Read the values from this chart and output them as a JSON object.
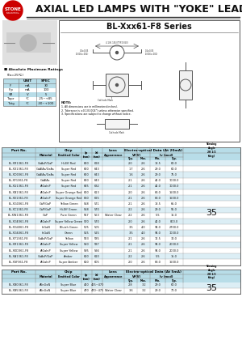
{
  "title_main": "AXIAL LED LAMPS WITH \"YOKE\" LEAD",
  "title_series": "BL-Xxx61-F8 Series",
  "logo_color": "#cc0000",
  "bg_color": "#ffffff",
  "table_header_bg": "#b8dde8",
  "abs_max_title": "Absolute Maximum Ratings",
  "abs_max_subtitle": "(Ta=25℃)",
  "abs_max_headers": [
    "",
    "UNIT",
    "SPEC"
  ],
  "abs_max_rows": [
    [
      "IF",
      "mA",
      "30"
    ],
    [
      "IFp",
      "mA",
      "100"
    ],
    [
      "VR",
      "V",
      "5"
    ],
    [
      "Topr",
      "°C",
      "-25~+85"
    ],
    [
      "Tstg",
      "°C",
      "-30~+100"
    ]
  ],
  "main_rows": [
    [
      "BL-XR1361-F8",
      "GaAsP/GaP",
      "Hi-Eff Red",
      "660",
      "628",
      "2.0",
      "2.6",
      "18.5",
      "60.0"
    ],
    [
      "BL-XX1361-F8",
      "GaAlAs/GaAs",
      "Super Red",
      "660",
      "643",
      "1.7",
      "2.6",
      "29.0",
      "60.0"
    ],
    [
      "BL-XD0361-F8",
      "GaAlAs/GaAs",
      "Super Red",
      "660",
      "643",
      "1.6",
      "2.6",
      "29.0",
      "75.0"
    ],
    [
      "BL-XF1361-F8",
      "GaAlAs",
      "Super Red",
      "660",
      "643",
      "2.1",
      "2.6",
      "42.0",
      "1000.0"
    ],
    [
      "BL-XU1361-F8",
      "AlGaInP",
      "Super Red",
      "645",
      "632",
      "2.1",
      "2.6",
      "42.0",
      "1000.0"
    ],
    [
      "BL-XB1361-F8",
      "AlGaInP",
      "Super Orange Red",
      "620",
      "613",
      "2.0",
      "2.6",
      "63.0",
      "1500.0"
    ],
    [
      "BL-XE1361-F8",
      "AlGaInP",
      "Super Orange Red",
      "630",
      "625",
      "2.1",
      "2.6",
      "63.0",
      "1500.0"
    ],
    [
      "BL-XG0361-F8",
      "GaP/GaP",
      "Yellow Green",
      "568",
      "571",
      "2.1",
      "2.6",
      "18.5",
      "65.0"
    ],
    [
      "BL-XC1361-F8",
      "GaP/GaP",
      "Hi-Eff Green",
      "568",
      "570",
      "2.2",
      "2.6",
      "29.0",
      "55.0"
    ],
    [
      "BL-XW1361-F8",
      "GaP",
      "Pure Green",
      "557",
      "563",
      "2.2",
      "2.6",
      "5.5",
      "15.0"
    ],
    [
      "BL-XGE361-F8",
      "AlGaInP",
      "Super Yellow Green",
      "570",
      "570",
      "2.0",
      "2.6",
      "42.0",
      "800.0"
    ],
    [
      "BL-XG4361-F8",
      "InGaN",
      "Bluish Green",
      "505",
      "505",
      "3.5",
      "4.0",
      "94.0",
      "2700.0"
    ],
    [
      "BL-XG6361-F8",
      "InGaN",
      "Green",
      "525",
      "525",
      "3.5",
      "4.0",
      "94.0",
      "1000.0"
    ],
    [
      "BL-XY1361-F8",
      "GaAsP/GaP",
      "Yellow",
      "583",
      "585",
      "2.1",
      "2.6",
      "12.5",
      "30.0"
    ],
    [
      "BL-XR1361-F8",
      "AlGaInP",
      "Super Yellow",
      "590",
      "587",
      "2.1",
      "2.6",
      "94.0",
      "2000.0"
    ],
    [
      "BL-XKD361-F8",
      "AlGaInP",
      "Super Yellow",
      "595",
      "594",
      "2.1",
      "2.6",
      "94.0",
      "2000.0"
    ],
    [
      "BL-XA1361-F8",
      "GaAsP/GaP",
      "Amber",
      "610",
      "610",
      "2.2",
      "2.6",
      "5.5",
      "15.0"
    ],
    [
      "BL-XSF361-F8",
      "AlGaInP",
      "Super Amber",
      "610",
      "605",
      "2.0",
      "2.6",
      "63.0",
      "1500.0"
    ]
  ],
  "main_viewing_angle": "35",
  "main_lens": "Water Clear",
  "blue_rows": [
    [
      "BL-XB0361-F8",
      "AlInGaN",
      "Super Blue",
      "460",
      "465~470",
      "2.8",
      "3.2",
      "29.0",
      "60.0"
    ],
    [
      "BL-XB5361-F8",
      "AlInGaN",
      "Super Blue",
      "470",
      "470~475",
      "3.6",
      "3.2",
      "29.0",
      "70.0"
    ]
  ],
  "blue_viewing_angle": "35",
  "blue_lens": "Water Clear",
  "note_lines": [
    "NOTE:",
    "1. All dimensions are in millimeters(inches).",
    "2. Tolerance is ±0.1(0.004\") unless otherwise specified.",
    "3. Specifications are subject to change without notice."
  ]
}
